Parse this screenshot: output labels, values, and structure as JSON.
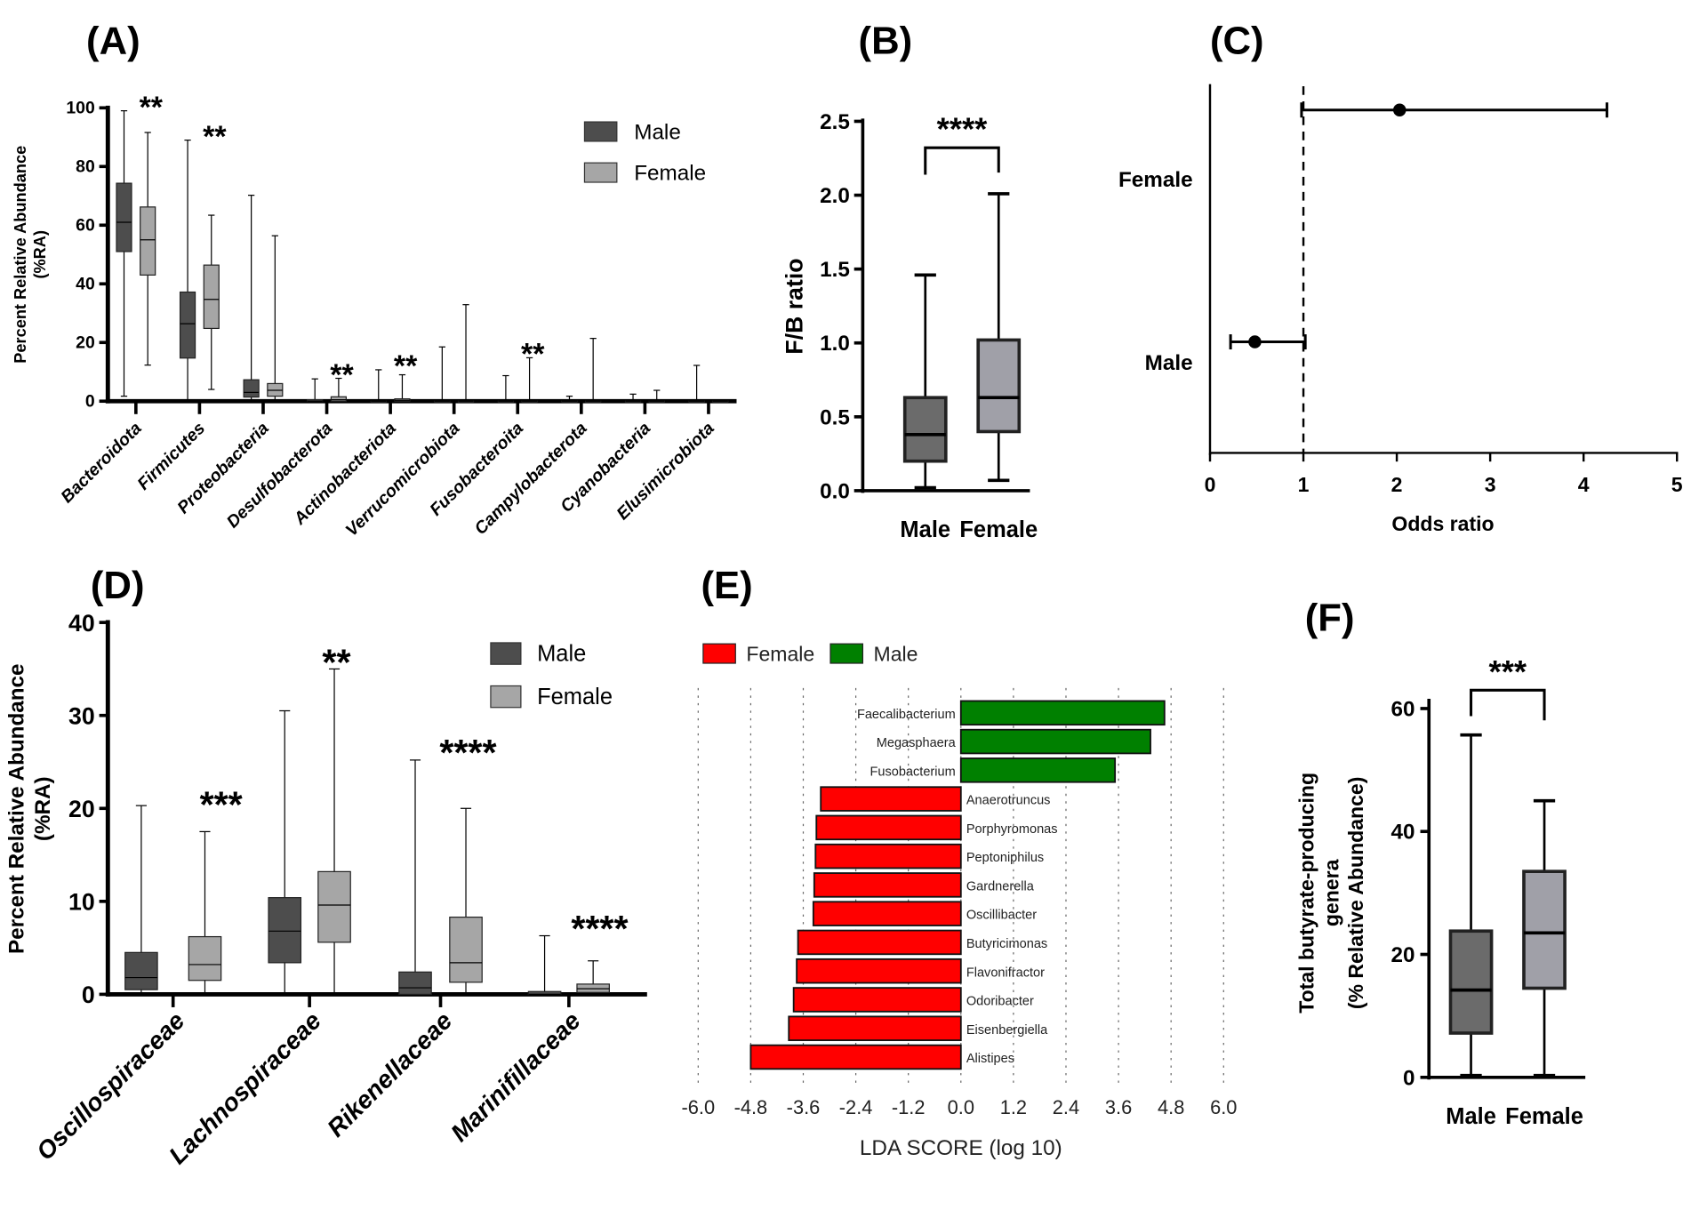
{
  "chart_data": [
    {
      "panel": "(A)",
      "type": "box",
      "ylabel_lines": [
        "Percent Relative Abundance",
        "(%RA)"
      ],
      "ylim": [
        0,
        100
      ],
      "yticks": [
        "0",
        "20",
        "40",
        "60",
        "80",
        "100"
      ],
      "legend": [
        "Male",
        "Female"
      ],
      "categories": [
        "Bacteroidota",
        "Firmicutes",
        "Proteobacteria",
        "Desulfobacterota",
        "Actinobacteriota",
        "Verrucomicrobiota",
        "Fusobacteroita",
        "Campylobacterota",
        "Cyanobacteria",
        "Elusimicrobiota"
      ],
      "series": [
        {
          "name": "Male",
          "color": "#4d4d4d",
          "boxes": [
            [
              1.7,
              51,
              61,
              74.3,
              99
            ],
            [
              0,
              14.7,
              26.4,
              37.2,
              89
            ],
            [
              0,
              1.4,
              3,
              7.3,
              70.2
            ],
            [
              0,
              0,
              0,
              0.5,
              7.6
            ],
            [
              0,
              0,
              0,
              0,
              10.7
            ],
            [
              0,
              0,
              0,
              0,
              18.5
            ],
            [
              0,
              0,
              0,
              0,
              8.7
            ],
            [
              0,
              0,
              0,
              0,
              1.7
            ],
            [
              0,
              0,
              0,
              0,
              2.4
            ],
            [
              0,
              0,
              0,
              0,
              12.2
            ]
          ]
        },
        {
          "name": "Female",
          "color": "#a6a6a6",
          "boxes": [
            [
              12.3,
              43,
              55,
              66.2,
              91.6
            ],
            [
              4,
              24.8,
              34.7,
              46.4,
              63.4
            ],
            [
              0,
              1.7,
              3.7,
              6,
              56.4
            ],
            [
              0,
              0,
              0.5,
              1.5,
              7.8
            ],
            [
              0,
              0,
              0.3,
              0.8,
              9
            ],
            [
              0,
              0,
              0,
              0,
              32.9
            ],
            [
              0,
              0,
              0,
              0,
              14.8
            ],
            [
              0,
              0,
              0,
              0,
              21.4
            ],
            [
              0,
              0,
              0,
              0,
              3.7
            ],
            [
              0,
              0,
              0,
              0,
              0
            ]
          ]
        }
      ],
      "significance": [
        "**",
        "**",
        "",
        "**",
        "**",
        "",
        "**",
        "",
        "",
        ""
      ]
    },
    {
      "panel": "(B)",
      "type": "box",
      "ylabel": "F/B ratio",
      "ylim": [
        0,
        2.5
      ],
      "yticks": [
        "0.0",
        "0.5",
        "1.0",
        "1.5",
        "2.0",
        "2.5"
      ],
      "categories": [
        "Male",
        "Female"
      ],
      "boxes": [
        [
          0.02,
          0.2,
          0.38,
          0.63,
          1.46
        ],
        [
          0.07,
          0.4,
          0.63,
          1.02,
          2.01
        ]
      ],
      "colors": [
        "#6b6b6b",
        "#a0a0a8"
      ],
      "significance": "****"
    },
    {
      "panel": "(C)",
      "type": "forest",
      "xlabel": "Odds ratio",
      "xlim": [
        0,
        5
      ],
      "xticks": [
        "0",
        "1",
        "2",
        "3",
        "4",
        "5"
      ],
      "reference": 1,
      "rows": [
        {
          "label": "Female",
          "or": 2.03,
          "ci": [
            0.98,
            4.25
          ]
        },
        {
          "label": "Male",
          "or": 0.48,
          "ci": [
            0.22,
            1.02
          ]
        }
      ]
    },
    {
      "panel": "(D)",
      "type": "box",
      "ylabel_lines": [
        "Percent Relative Abundance",
        "(%RA)"
      ],
      "ylim": [
        0,
        40
      ],
      "yticks": [
        "0",
        "10",
        "20",
        "30",
        "40"
      ],
      "legend": [
        "Male",
        "Female"
      ],
      "categories": [
        "Oscillospiraceae",
        "Lachnospiraceae",
        "Rikenellaceae",
        "Marinifillaceae"
      ],
      "series": [
        {
          "name": "Male",
          "color": "#4d4d4d",
          "boxes": [
            [
              0,
              0.5,
              1.8,
              4.5,
              20.3
            ],
            [
              0,
              3.4,
              6.8,
              10.4,
              30.5
            ],
            [
              0,
              0,
              0.7,
              2.4,
              25.2
            ],
            [
              0,
              0,
              0,
              0.3,
              6.3
            ]
          ]
        },
        {
          "name": "Female",
          "color": "#a6a6a6",
          "boxes": [
            [
              0,
              1.5,
              3.2,
              6.2,
              17.5
            ],
            [
              0,
              5.6,
              9.6,
              13.2,
              35
            ],
            [
              0,
              1.3,
              3.4,
              8.3,
              20
            ],
            [
              0,
              0.2,
              0.6,
              1.1,
              3.6
            ]
          ]
        }
      ],
      "significance": [
        "***",
        "**",
        "****",
        "****"
      ]
    },
    {
      "panel": "(E)",
      "type": "bar",
      "orientation": "horizontal",
      "legend": [
        "Female",
        "Male"
      ],
      "colors": {
        "Female": "#ff0000",
        "Male": "#008000"
      },
      "xlabel": "LDA SCORE (log 10)",
      "xlim": [
        -6,
        6
      ],
      "xticks": [
        "-6.0",
        "-4.8",
        "-3.6",
        "-2.4",
        "-1.2",
        "0.0",
        "1.2",
        "2.4",
        "3.6",
        "4.8",
        "6.0"
      ],
      "categories": [
        "Faecalibacterium",
        "Megasphaera",
        "Fusobacterium",
        "Anaerotruncus",
        "Porphyromonas",
        "Peptoniphilus",
        "Gardnerella",
        "Oscillibacter",
        "Butyricimonas",
        "Flavonifractor",
        "Odoribacter",
        "Eisenbergiella",
        "Alistipes"
      ],
      "values": [
        4.65,
        4.33,
        3.52,
        -3.2,
        -3.3,
        -3.32,
        -3.35,
        -3.37,
        -3.72,
        -3.75,
        -3.82,
        -3.93,
        -4.8
      ]
    },
    {
      "panel": "(F)",
      "type": "box",
      "ylabel_lines": [
        "Total butyrate-producing",
        "genera",
        "(% Relative Abundance)"
      ],
      "ylim": [
        0,
        60
      ],
      "yticks": [
        "0",
        "20",
        "40",
        "60"
      ],
      "categories": [
        "Male",
        "Female"
      ],
      "boxes": [
        [
          0.3,
          7.2,
          14.2,
          23.8,
          55.7
        ],
        [
          0.3,
          14.5,
          23.5,
          33.5,
          45
        ]
      ],
      "colors": [
        "#6b6b6b",
        "#a0a0a8"
      ],
      "significance": "***"
    }
  ]
}
